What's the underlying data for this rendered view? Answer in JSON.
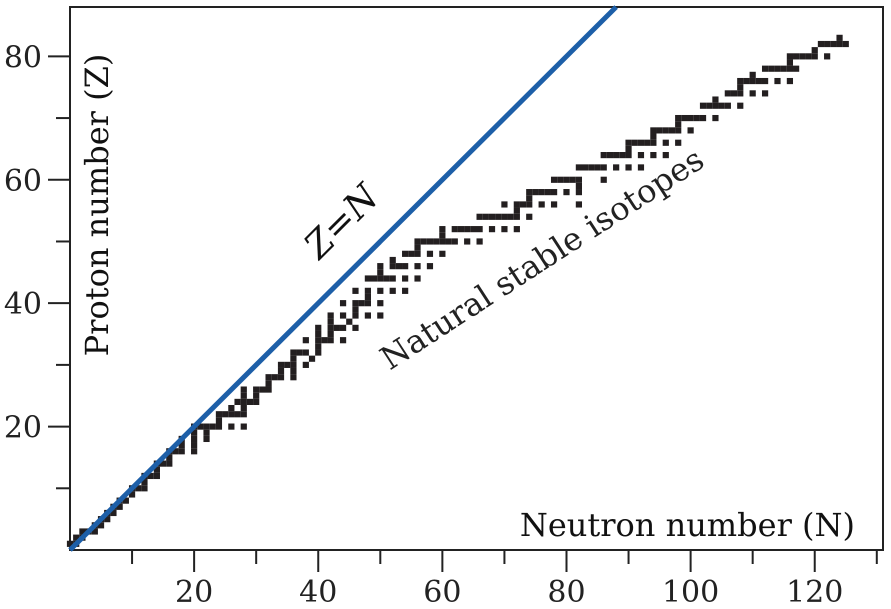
{
  "chart_data": {
    "type": "scatter",
    "title": "",
    "xlabel": "Neutron number (N)",
    "ylabel": "Proton number (Z)",
    "xlim": [
      0,
      131
    ],
    "ylim": [
      0,
      88
    ],
    "x_ticks_labeled": [
      20,
      40,
      60,
      80,
      100,
      120
    ],
    "x_ticks_minor": [
      10,
      30,
      50,
      70,
      90,
      110,
      130
    ],
    "y_ticks_labeled": [
      20,
      40,
      60,
      80
    ],
    "y_ticks_minor": [
      10,
      30,
      50,
      70
    ],
    "grid": false,
    "series": [
      {
        "name": "Z=N",
        "kind": "line",
        "color": "#1d5fa8",
        "points": [
          [
            0,
            0
          ],
          [
            88,
            88
          ]
        ]
      },
      {
        "name": "Natural stable isotopes",
        "kind": "scatter",
        "color": "#231f20",
        "points": [
          [
            0,
            1
          ],
          [
            1,
            1
          ],
          [
            1,
            2
          ],
          [
            2,
            2
          ],
          [
            2,
            3
          ],
          [
            3,
            3
          ],
          [
            4,
            3
          ],
          [
            4,
            4
          ],
          [
            5,
            4
          ],
          [
            5,
            5
          ],
          [
            6,
            5
          ],
          [
            6,
            6
          ],
          [
            7,
            6
          ],
          [
            7,
            7
          ],
          [
            8,
            7
          ],
          [
            8,
            8
          ],
          [
            9,
            8
          ],
          [
            10,
            9
          ],
          [
            10,
            10
          ],
          [
            11,
            10
          ],
          [
            12,
            10
          ],
          [
            12,
            11
          ],
          [
            12,
            12
          ],
          [
            13,
            12
          ],
          [
            14,
            12
          ],
          [
            14,
            13
          ],
          [
            14,
            14
          ],
          [
            15,
            14
          ],
          [
            16,
            14
          ],
          [
            16,
            15
          ],
          [
            16,
            16
          ],
          [
            17,
            16
          ],
          [
            18,
            16
          ],
          [
            18,
            17
          ],
          [
            20,
            16
          ],
          [
            18,
            18
          ],
          [
            20,
            17
          ],
          [
            20,
            18
          ],
          [
            20,
            19
          ],
          [
            20,
            20
          ],
          [
            22,
            18
          ],
          [
            21,
            20
          ],
          [
            22,
            19
          ],
          [
            22,
            20
          ],
          [
            23,
            20
          ],
          [
            24,
            20
          ],
          [
            24,
            21
          ],
          [
            24,
            22
          ],
          [
            25,
            22
          ],
          [
            26,
            20
          ],
          [
            26,
            22
          ],
          [
            26,
            23
          ],
          [
            27,
            22
          ],
          [
            27,
            24
          ],
          [
            28,
            20
          ],
          [
            28,
            22
          ],
          [
            28,
            23
          ],
          [
            28,
            24
          ],
          [
            28,
            25
          ],
          [
            28,
            26
          ],
          [
            29,
            24
          ],
          [
            30,
            24
          ],
          [
            30,
            25
          ],
          [
            30,
            26
          ],
          [
            31,
            26
          ],
          [
            32,
            26
          ],
          [
            32,
            27
          ],
          [
            32,
            28
          ],
          [
            33,
            28
          ],
          [
            34,
            28
          ],
          [
            34,
            29
          ],
          [
            34,
            30
          ],
          [
            35,
            30
          ],
          [
            36,
            28
          ],
          [
            36,
            29
          ],
          [
            36,
            30
          ],
          [
            36,
            31
          ],
          [
            36,
            32
          ],
          [
            37,
            32
          ],
          [
            38,
            30
          ],
          [
            38,
            32
          ],
          [
            38,
            34
          ],
          [
            39,
            31
          ],
          [
            40,
            32
          ],
          [
            40,
            33
          ],
          [
            40,
            34
          ],
          [
            40,
            35
          ],
          [
            40,
            36
          ],
          [
            41,
            34
          ],
          [
            42,
            34
          ],
          [
            42,
            35
          ],
          [
            42,
            36
          ],
          [
            42,
            37
          ],
          [
            42,
            38
          ],
          [
            43,
            36
          ],
          [
            44,
            34
          ],
          [
            44,
            36
          ],
          [
            44,
            38
          ],
          [
            44,
            40
          ],
          [
            45,
            37
          ],
          [
            46,
            36
          ],
          [
            46,
            38
          ],
          [
            46,
            39
          ],
          [
            46,
            40
          ],
          [
            46,
            42
          ],
          [
            47,
            40
          ],
          [
            48,
            38
          ],
          [
            48,
            40
          ],
          [
            48,
            41
          ],
          [
            48,
            42
          ],
          [
            48,
            44
          ],
          [
            49,
            44
          ],
          [
            50,
            38
          ],
          [
            50,
            40
          ],
          [
            50,
            42
          ],
          [
            50,
            44
          ],
          [
            50,
            45
          ],
          [
            50,
            46
          ],
          [
            51,
            44
          ],
          [
            52,
            42
          ],
          [
            52,
            44
          ],
          [
            52,
            46
          ],
          [
            52,
            47
          ],
          [
            53,
            46
          ],
          [
            54,
            42
          ],
          [
            54,
            44
          ],
          [
            54,
            46
          ],
          [
            54,
            48
          ],
          [
            55,
            48
          ],
          [
            56,
            44
          ],
          [
            56,
            46
          ],
          [
            56,
            48
          ],
          [
            56,
            49
          ],
          [
            56,
            50
          ],
          [
            57,
            50
          ],
          [
            58,
            46
          ],
          [
            58,
            48
          ],
          [
            58,
            50
          ],
          [
            59,
            50
          ],
          [
            60,
            48
          ],
          [
            60,
            50
          ],
          [
            60,
            51
          ],
          [
            60,
            52
          ],
          [
            61,
            50
          ],
          [
            62,
            50
          ],
          [
            62,
            52
          ],
          [
            63,
            52
          ],
          [
            64,
            50
          ],
          [
            64,
            52
          ],
          [
            65,
            52
          ],
          [
            66,
            50
          ],
          [
            66,
            52
          ],
          [
            66,
            54
          ],
          [
            67,
            54
          ],
          [
            68,
            52
          ],
          [
            68,
            54
          ],
          [
            69,
            54
          ],
          [
            70,
            52
          ],
          [
            70,
            54
          ],
          [
            70,
            56
          ],
          [
            71,
            54
          ],
          [
            72,
            52
          ],
          [
            72,
            54
          ],
          [
            72,
            55
          ],
          [
            72,
            56
          ],
          [
            73,
            56
          ],
          [
            74,
            54
          ],
          [
            74,
            56
          ],
          [
            74,
            57
          ],
          [
            74,
            58
          ],
          [
            75,
            58
          ],
          [
            76,
            56
          ],
          [
            76,
            58
          ],
          [
            77,
            58
          ],
          [
            78,
            56
          ],
          [
            78,
            58
          ],
          [
            78,
            60
          ],
          [
            79,
            60
          ],
          [
            80,
            58
          ],
          [
            80,
            60
          ],
          [
            81,
            60
          ],
          [
            82,
            56
          ],
          [
            82,
            58
          ],
          [
            82,
            59
          ],
          [
            82,
            60
          ],
          [
            82,
            62
          ],
          [
            83,
            62
          ],
          [
            84,
            62
          ],
          [
            85,
            62
          ],
          [
            86,
            60
          ],
          [
            86,
            62
          ],
          [
            86,
            64
          ],
          [
            87,
            64
          ],
          [
            88,
            62
          ],
          [
            88,
            64
          ],
          [
            89,
            64
          ],
          [
            90,
            62
          ],
          [
            90,
            64
          ],
          [
            90,
            65
          ],
          [
            90,
            66
          ],
          [
            91,
            66
          ],
          [
            92,
            62
          ],
          [
            92,
            64
          ],
          [
            92,
            66
          ],
          [
            93,
            66
          ],
          [
            94,
            64
          ],
          [
            94,
            66
          ],
          [
            94,
            67
          ],
          [
            94,
            68
          ],
          [
            95,
            68
          ],
          [
            96,
            64
          ],
          [
            96,
            66
          ],
          [
            96,
            68
          ],
          [
            97,
            68
          ],
          [
            98,
            66
          ],
          [
            98,
            68
          ],
          [
            98,
            69
          ],
          [
            98,
            70
          ],
          [
            99,
            70
          ],
          [
            100,
            68
          ],
          [
            100,
            70
          ],
          [
            101,
            70
          ],
          [
            102,
            70
          ],
          [
            102,
            72
          ],
          [
            103,
            72
          ],
          [
            104,
            70
          ],
          [
            104,
            72
          ],
          [
            104,
            73
          ],
          [
            105,
            72
          ],
          [
            106,
            72
          ],
          [
            106,
            74
          ],
          [
            107,
            74
          ],
          [
            108,
            72
          ],
          [
            108,
            74
          ],
          [
            108,
            75
          ],
          [
            108,
            76
          ],
          [
            109,
            76
          ],
          [
            110,
            74
          ],
          [
            110,
            76
          ],
          [
            110,
            77
          ],
          [
            111,
            76
          ],
          [
            112,
            74
          ],
          [
            112,
            76
          ],
          [
            112,
            78
          ],
          [
            113,
            78
          ],
          [
            114,
            76
          ],
          [
            114,
            78
          ],
          [
            115,
            78
          ],
          [
            116,
            76
          ],
          [
            116,
            78
          ],
          [
            116,
            79
          ],
          [
            116,
            80
          ],
          [
            117,
            78
          ],
          [
            117,
            80
          ],
          [
            118,
            80
          ],
          [
            119,
            80
          ],
          [
            120,
            80
          ],
          [
            120,
            81
          ],
          [
            121,
            82
          ],
          [
            122,
            80
          ],
          [
            122,
            82
          ],
          [
            123,
            82
          ],
          [
            124,
            82
          ],
          [
            124,
            83
          ],
          [
            125,
            82
          ]
        ]
      }
    ],
    "annotations": [
      "Z=N",
      "Natural stable isotopes"
    ]
  }
}
